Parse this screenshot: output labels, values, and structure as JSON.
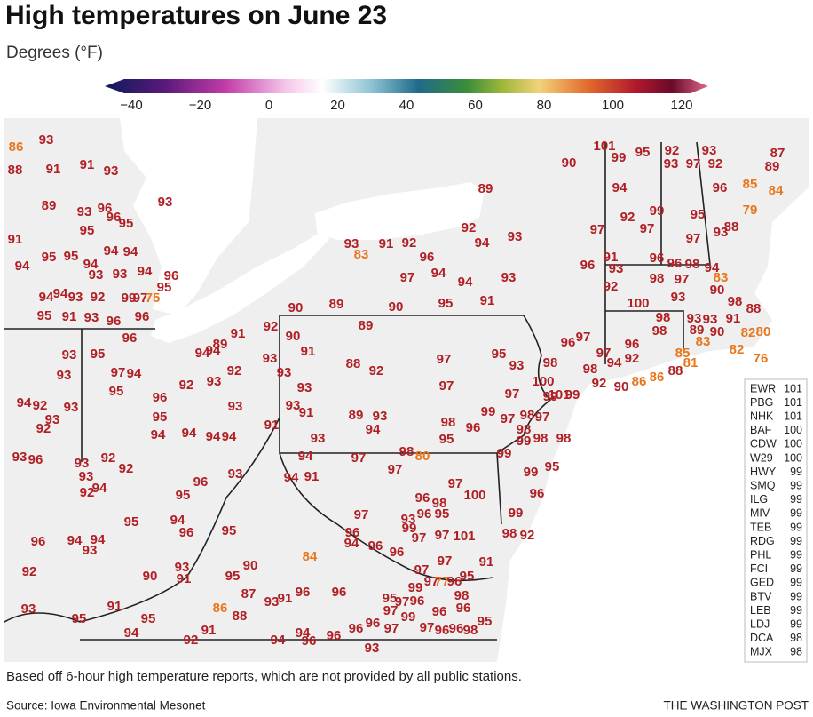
{
  "title": "High temperatures on June 23",
  "subtitle": "Degrees (°F)",
  "colorbar": {
    "ticks": [
      {
        "value": -40,
        "label": "−40"
      },
      {
        "value": -20,
        "label": "−20"
      },
      0,
      20,
      40,
      60,
      80,
      100,
      120
    ]
  },
  "stations": {
    "values": [
      86,
      93,
      88,
      91,
      91,
      93,
      93,
      89,
      93,
      96,
      96,
      95,
      95,
      91,
      95,
      95,
      94,
      94,
      94,
      93,
      93,
      94,
      96,
      95,
      94,
      94,
      94,
      93,
      92,
      99,
      97,
      75,
      95,
      91,
      93,
      96,
      96,
      90,
      89,
      90,
      95,
      91,
      93,
      97,
      94,
      94,
      96,
      92,
      91,
      93,
      83,
      92,
      94,
      93,
      89,
      101,
      90,
      99,
      95,
      92,
      93,
      97,
      92,
      93,
      87,
      89,
      96,
      85,
      84,
      79,
      94,
      92,
      99,
      95,
      88,
      93,
      97,
      97,
      97,
      96,
      91,
      93,
      96,
      96,
      98,
      94,
      98,
      97,
      83,
      92,
      90,
      100,
      93,
      98,
      88,
      98,
      93,
      93,
      91,
      89,
      90,
      82,
      80,
      83,
      82,
      76,
      89,
      90,
      92,
      91,
      91,
      89,
      94,
      94,
      96,
      95,
      93,
      93,
      97,
      94,
      88,
      92,
      97,
      95,
      93,
      98,
      96,
      97,
      97,
      96,
      98,
      85,
      88,
      86,
      81,
      92,
      94,
      98,
      92,
      90,
      86,
      97,
      99,
      100,
      101,
      99,
      93,
      93,
      92,
      93,
      92,
      95,
      96,
      94,
      92,
      93,
      93,
      92,
      95,
      94,
      94,
      94,
      94,
      93,
      93,
      97,
      93,
      91,
      89,
      93,
      94,
      98,
      96,
      99,
      97,
      98,
      97,
      98,
      98,
      95,
      99,
      98,
      91,
      93,
      94,
      97,
      98,
      80,
      99,
      99,
      95,
      96,
      97,
      91,
      93,
      94,
      96,
      95,
      93,
      96,
      93,
      92,
      92,
      93,
      92,
      94,
      95,
      97,
      97,
      100,
      96,
      98,
      96,
      95,
      93,
      99,
      97,
      99,
      98,
      92,
      96,
      94,
      96,
      96,
      101,
      97,
      84,
      94,
      96,
      95,
      94,
      94,
      93,
      96,
      92,
      93,
      90,
      91,
      95,
      90,
      97,
      97,
      91,
      99,
      97,
      77,
      96,
      95,
      87,
      93,
      91,
      96,
      96,
      95,
      97,
      97,
      96,
      96,
      98,
      96,
      93,
      91,
      95,
      95,
      86,
      88,
      99,
      94,
      91,
      92,
      94,
      94,
      96,
      96,
      96,
      96,
      97,
      93,
      97,
      96,
      96,
      98,
      95
    ]
  },
  "table": {
    "rows": [
      [
        "EWR",
        101
      ],
      [
        "PBG",
        101
      ],
      [
        "NHK",
        101
      ],
      [
        "BAF",
        100
      ],
      [
        "CDW",
        100
      ],
      [
        "W29",
        100
      ],
      [
        "HWY",
        99
      ],
      [
        "SMQ",
        99
      ],
      [
        "ILG",
        99
      ],
      [
        "MIV",
        99
      ],
      [
        "TEB",
        99
      ],
      [
        "RDG",
        99
      ],
      [
        "PHL",
        99
      ],
      [
        "FCI",
        99
      ],
      [
        "GED",
        99
      ],
      [
        "BTV",
        99
      ],
      [
        "LEB",
        99
      ],
      [
        "LDJ",
        99
      ],
      [
        "DCA",
        98
      ],
      [
        "MJX",
        98
      ]
    ]
  },
  "note": "Based off 6-hour high temperature reports, which are not provided by all public stations.",
  "source": "Source: Iowa Environmental Mesonet",
  "credit": "THE WASHINGTON POST"
}
